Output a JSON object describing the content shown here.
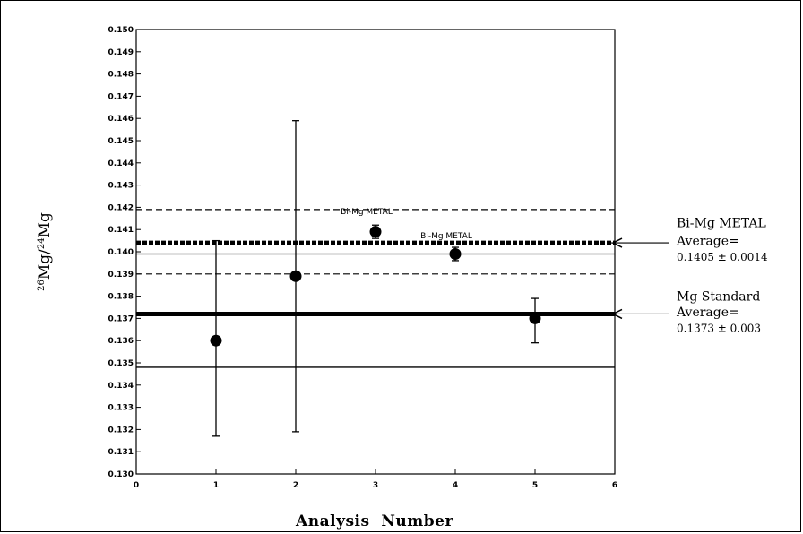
{
  "chart_data": {
    "type": "scatter",
    "title": "",
    "xlabel": "Analysis  Number",
    "ylabel_parts": {
      "mass1": "26",
      "elem1": "Mg/",
      "mass2": "24",
      "elem2": "Mg"
    },
    "xlim": [
      0,
      6
    ],
    "ylim": [
      0.13,
      0.15
    ],
    "x_ticks": [
      "0",
      "1",
      "2",
      "3",
      "4",
      "5",
      "6"
    ],
    "y_ticks": [
      "0.130",
      "0.131",
      "0.132",
      "0.133",
      "0.134",
      "0.135",
      "0.136",
      "0.137",
      "0.138",
      "0.139",
      "0.140",
      "0.141",
      "0.142",
      "0.143",
      "0.144",
      "0.145",
      "0.146",
      "0.147",
      "0.148",
      "0.149",
      "0.150"
    ],
    "points": [
      {
        "x": 1,
        "y": 0.136,
        "err_low": 0.1317,
        "err_high": 0.1405
      },
      {
        "x": 2,
        "y": 0.1389,
        "err_low": 0.1319,
        "err_high": 0.1459
      },
      {
        "x": 3,
        "y": 0.1409,
        "err_low": 0.1406,
        "err_high": 0.1412
      },
      {
        "x": 4,
        "y": 0.1399,
        "err_low": 0.1396,
        "err_high": 0.1402
      },
      {
        "x": 5,
        "y": 0.137,
        "err_low": 0.1359,
        "err_high": 0.1379
      }
    ],
    "reference_lines": [
      {
        "name": "metal-upper",
        "y": 0.1419,
        "style": "dashed-thin"
      },
      {
        "name": "metal-average",
        "y": 0.1404,
        "style": "dashed-thick"
      },
      {
        "name": "metal-lower",
        "y": 0.139,
        "style": "dashed-thin"
      },
      {
        "name": "standard-upper",
        "y": 0.1399,
        "style": "solid-thin"
      },
      {
        "name": "standard-average",
        "y": 0.1372,
        "style": "solid-thick"
      },
      {
        "name": "standard-lower",
        "y": 0.1348,
        "style": "solid-thin"
      }
    ],
    "point_labels": [
      {
        "text": "Bi-Mg  METAL",
        "x": 3,
        "y": 0.1417
      },
      {
        "text": "Bi-Mg  METAL",
        "x": 4,
        "y": 0.1406
      }
    ],
    "annotations": [
      {
        "name": "metal",
        "title": "Bi-Mg  METAL",
        "subtitle": "Average=",
        "value": "0.1405 ± 0.0014",
        "y": 0.1404
      },
      {
        "name": "standard",
        "title": "Mg Standard",
        "subtitle": "Average=",
        "value": "0.1373 ± 0.003",
        "y": 0.1372
      }
    ],
    "grid": false,
    "legend": "none"
  }
}
